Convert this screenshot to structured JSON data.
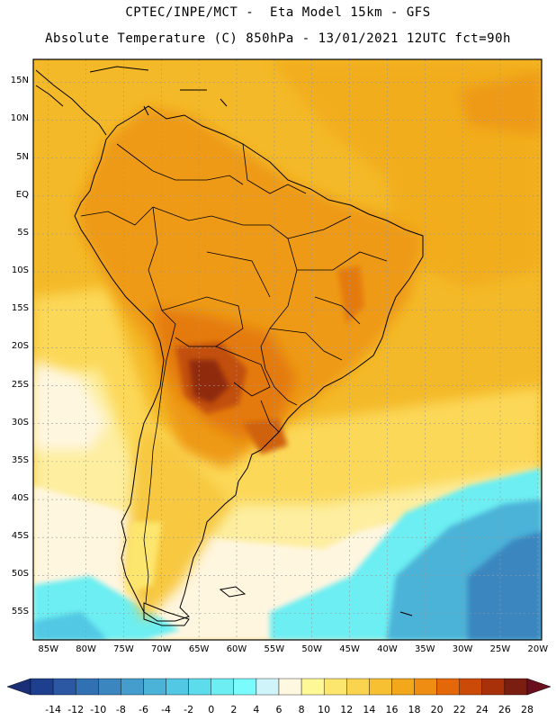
{
  "header": {
    "line1": "CPTEC/INPE/MCT -  Eta Model 15km - GFS",
    "line2": "Absolute Temperature (C) 850hPa - 13/01/2021 12UTC fct=90h"
  },
  "map": {
    "variable": "Absolute Temperature",
    "units": "C",
    "level": "850hPa",
    "lat_labels": [
      "15N",
      "10N",
      "5N",
      "EQ",
      "5S",
      "10S",
      "15S",
      "20S",
      "25S",
      "30S",
      "35S",
      "40S",
      "45S",
      "50S",
      "55S"
    ],
    "lon_labels": [
      "85W",
      "80W",
      "75W",
      "70W",
      "65W",
      "60W",
      "55W",
      "50W",
      "45W",
      "40W",
      "35W",
      "30W",
      "25W",
      "20W"
    ],
    "lat_values": [
      15,
      10,
      5,
      0,
      -5,
      -10,
      -15,
      -20,
      -25,
      -30,
      -35,
      -40,
      -45,
      -50,
      -55
    ],
    "lon_values": [
      -85,
      -80,
      -75,
      -70,
      -65,
      -60,
      -55,
      -50,
      -45,
      -40,
      -35,
      -30,
      -25,
      -20
    ]
  },
  "colorbar": {
    "labels": [
      "-14",
      "-12",
      "-10",
      "-8",
      "-6",
      "-4",
      "-2",
      "0",
      "2",
      "4",
      "6",
      "8",
      "10",
      "12",
      "14",
      "16",
      "18",
      "20",
      "22",
      "24",
      "26",
      "28"
    ],
    "colors": [
      "#1e3f8e",
      "#2b57a3",
      "#3170b2",
      "#3b86bf",
      "#449dcc",
      "#4bb2d8",
      "#52c8e4",
      "#5ddcec",
      "#6ceef2",
      "#7bfcfc",
      "#cff5fb",
      "#fff8e0",
      "#fef896",
      "#fde66d",
      "#fad44f",
      "#f7c033",
      "#f3a81c",
      "#ee8d12",
      "#e46809",
      "#cc4a07",
      "#a8310a",
      "#7a1e12"
    ],
    "under_color": "#1a2f78",
    "over_color": "#6a0f1e"
  },
  "styles": {
    "ocean_warm": "#f2b51d",
    "ocean_mid": "#fbd552",
    "land_hot": "#ef9012",
    "land_very_hot": "#dc6b0d",
    "land_extreme": "#b7460c",
    "cold_ocean": "#5ddcec",
    "very_cold_ocean": "#3b86bf"
  }
}
